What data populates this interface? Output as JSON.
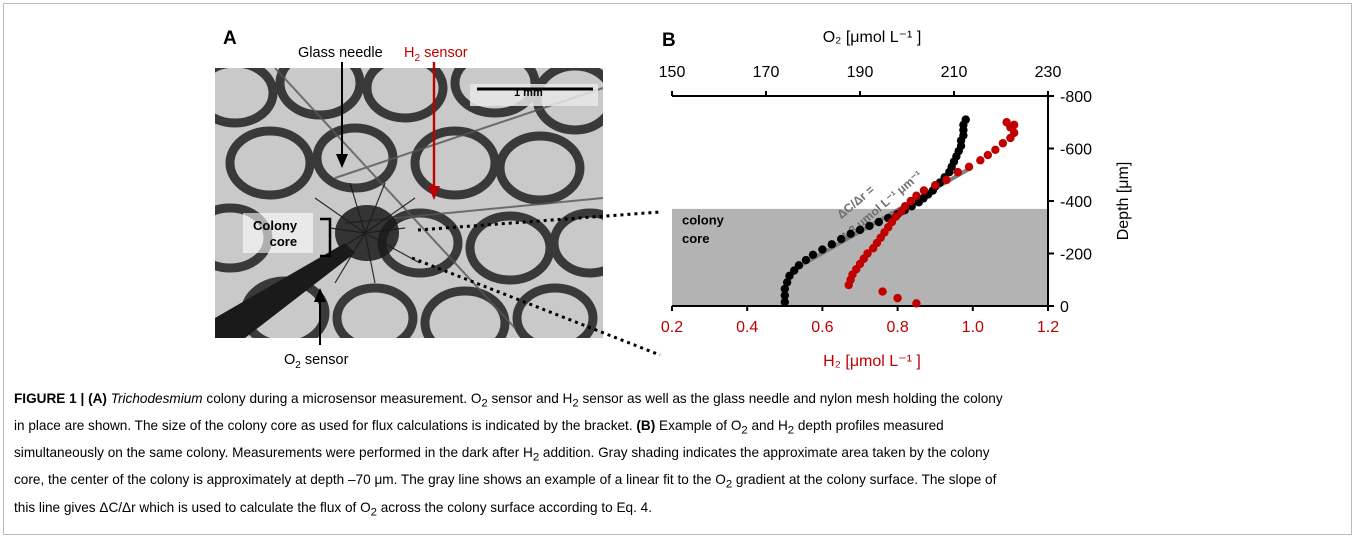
{
  "panel_a": {
    "letter": "A",
    "labels": {
      "glass_needle": "Glass needle",
      "h2_sensor_main": "H",
      "h2_sensor_sub": "2",
      "h2_sensor_tail": " sensor",
      "scale_bar": "1 mm",
      "colony_core_line1": "Colony",
      "colony_core_line2": "core",
      "o2_sensor_main": "O",
      "o2_sensor_sub": "2",
      "o2_sensor_tail": " sensor"
    },
    "colors": {
      "h2_arrow": "#c00000",
      "photo_bg": "#c9c9c9"
    }
  },
  "panel_b": {
    "letter": "B",
    "shading_labels": [
      "colony",
      "core"
    ],
    "fit_label_line1": "ΔC/Δr =",
    "fit_label_line2": "1.3 μmol L⁻¹ μm⁻¹"
  },
  "chart_data": {
    "type": "scatter",
    "top_axis": {
      "label": "O₂ [μmol L⁻¹ ]",
      "range": [
        150,
        230
      ],
      "ticks": [
        150,
        170,
        190,
        210,
        230
      ]
    },
    "bottom_axis": {
      "label": "H₂ [μmol L⁻¹ ]",
      "range": [
        0.2,
        1.2
      ],
      "ticks": [
        "0.2",
        "0.4",
        "0.6",
        "0.8",
        "1.0",
        "1.2"
      ],
      "color": "#c00000"
    },
    "right_axis": {
      "label": "Depth [μm]",
      "range": [
        0,
        -800
      ],
      "ticks": [
        "0",
        "-200",
        "-400",
        "-600",
        "-800"
      ]
    },
    "colony_core_shading": {
      "depth_range": [
        0,
        -370
      ],
      "color": "#b3b3b3"
    },
    "fit_line": {
      "o2": [
        177,
        213
      ],
      "depth": [
        -150,
        -520
      ],
      "color": "#7f7f7f"
    },
    "series": [
      {
        "color": "#000000",
        "axis": "O2",
        "points": [
          [
            174,
            15
          ],
          [
            174,
            40
          ],
          [
            174,
            65
          ],
          [
            174.5,
            90
          ],
          [
            175,
            115
          ],
          [
            176,
            135
          ],
          [
            177,
            155
          ],
          [
            178.5,
            175
          ],
          [
            180,
            195
          ],
          [
            182,
            215
          ],
          [
            184,
            235
          ],
          [
            186,
            255
          ],
          [
            188,
            275
          ],
          [
            190,
            290
          ],
          [
            192,
            305
          ],
          [
            194,
            320
          ],
          [
            196,
            335
          ],
          [
            198,
            350
          ],
          [
            199.5,
            365
          ],
          [
            201,
            380
          ],
          [
            202.5,
            395
          ],
          [
            203.5,
            410
          ],
          [
            204.5,
            425
          ],
          [
            205.5,
            440
          ],
          [
            206,
            455
          ],
          [
            207,
            470
          ],
          [
            208,
            490
          ],
          [
            209,
            510
          ],
          [
            209.5,
            530
          ],
          [
            210,
            550
          ],
          [
            210.5,
            570
          ],
          [
            211,
            590
          ],
          [
            211.5,
            610
          ],
          [
            211.5,
            630
          ],
          [
            212,
            650
          ],
          [
            212,
            670
          ],
          [
            212,
            690
          ],
          [
            212.5,
            710
          ]
        ]
      },
      {
        "color": "#c00000",
        "axis": "H2",
        "points": [
          [
            0.85,
            10
          ],
          [
            0.8,
            30
          ],
          [
            0.76,
            55
          ],
          [
            0.67,
            80
          ],
          [
            0.675,
            100
          ],
          [
            0.68,
            120
          ],
          [
            0.69,
            140
          ],
          [
            0.7,
            160
          ],
          [
            0.71,
            180
          ],
          [
            0.72,
            200
          ],
          [
            0.735,
            220
          ],
          [
            0.745,
            240
          ],
          [
            0.755,
            260
          ],
          [
            0.765,
            280
          ],
          [
            0.775,
            300
          ],
          [
            0.785,
            320
          ],
          [
            0.795,
            340
          ],
          [
            0.81,
            360
          ],
          [
            0.82,
            380
          ],
          [
            0.835,
            400
          ],
          [
            0.85,
            420
          ],
          [
            0.87,
            440
          ],
          [
            0.9,
            460
          ],
          [
            0.93,
            480
          ],
          [
            0.96,
            510
          ],
          [
            0.99,
            530
          ],
          [
            1.02,
            555
          ],
          [
            1.04,
            575
          ],
          [
            1.06,
            595
          ],
          [
            1.08,
            620
          ],
          [
            1.1,
            640
          ],
          [
            1.11,
            660
          ],
          [
            1.1,
            680
          ],
          [
            1.09,
            700
          ],
          [
            1.11,
            690
          ]
        ]
      }
    ]
  },
  "caption": {
    "l1_fig": "FIGURE 1 | ",
    "l1_a": "(A) ",
    "l1_tricho": "Trichodesmium",
    "l1_rest": " colony during a microsensor measurement. O",
    "l1_sub1": "2",
    "l1_rest2": " sensor and H",
    "l1_sub2": "2",
    "l1_rest3": " sensor as well as the glass needle and nylon mesh holding the colony",
    "l2": "in place are shown. The size of the colony core as used for flux calculations is indicated by the bracket. ",
    "l2_b": "(B)",
    "l2_rest": " Example of O",
    "l2_sub1": "2",
    "l2_rest2": " and H",
    "l2_sub2": "2",
    "l2_rest3": " depth profiles measured",
    "l3": "simultaneously on the same colony. Measurements were performed in the dark after H",
    "l3_sub": "2",
    "l3_rest": " addition. Gray shading indicates the approximate area taken by the colony",
    "l4": "core, the center of the colony is approximately at depth –70 μm. The gray line shows an example of a linear fit to the O",
    "l4_sub": "2",
    "l4_rest": " gradient at the colony surface. The slope of",
    "l5": "this line gives ΔC/Δr which is used to calculate the flux of O",
    "l5_sub": "2",
    "l5_rest": " across the colony surface according to Eq. 4."
  }
}
